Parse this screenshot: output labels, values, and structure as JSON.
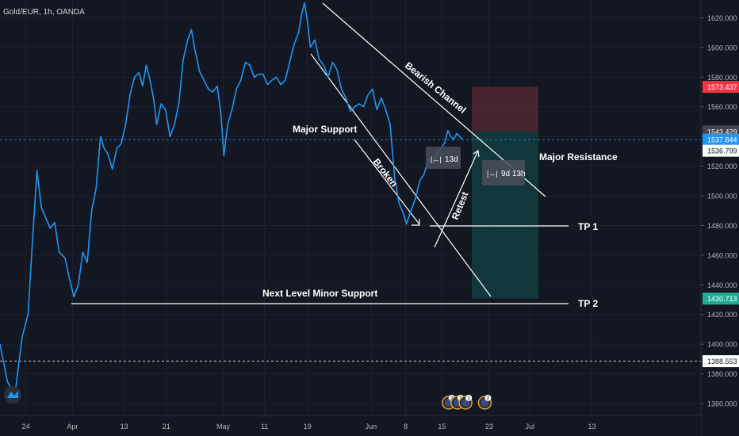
{
  "symbol_label": "Gold/EUR, 1h, OANDA",
  "colors": {
    "background": "#131722",
    "price_line": "#2196f3",
    "grid": "#1e2230",
    "axis_text": "#b2b5be",
    "annotation": "#ffffff",
    "stop_zone": "#5a2a33",
    "target_zone": "#123f43",
    "badge_red": "#f23645",
    "badge_blue": "#2196f3"
  },
  "chart_data": {
    "type": "line",
    "ylim": [
      1352,
      1632
    ],
    "y_ticks": [
      1360,
      1380,
      1400,
      1420,
      1440,
      1460,
      1480,
      1500,
      1520,
      1540,
      1560,
      1580,
      1600,
      1620
    ],
    "y_tick_labels": [
      "1360.000",
      "1380.000",
      "1400.000",
      "1420.000",
      "1440.000",
      "1460.000",
      "1480.000",
      "1500.000",
      "1520.000",
      "1540.000",
      "1560.000",
      "1580.000",
      "1600.000",
      "1620.000"
    ],
    "x_ticks": [
      {
        "label": "24",
        "t": 0.035
      },
      {
        "label": "Apr",
        "t": 0.098
      },
      {
        "label": "13",
        "t": 0.168
      },
      {
        "label": "21",
        "t": 0.225
      },
      {
        "label": "May",
        "t": 0.302
      },
      {
        "label": "11",
        "t": 0.358
      },
      {
        "label": "19",
        "t": 0.416
      },
      {
        "label": "Jun",
        "t": 0.502
      },
      {
        "label": "8",
        "t": 0.549
      },
      {
        "label": "15",
        "t": 0.598
      },
      {
        "label": "23",
        "t": 0.662
      },
      {
        "label": "Jul",
        "t": 0.717
      },
      {
        "label": "13",
        "t": 0.801
      }
    ],
    "series": [
      {
        "points": [
          [
            0.0,
            1400
          ],
          [
            0.01,
            1375
          ],
          [
            0.02,
            1365
          ],
          [
            0.03,
            1405
          ],
          [
            0.038,
            1420
          ],
          [
            0.044,
            1470
          ],
          [
            0.05,
            1517
          ],
          [
            0.056,
            1492
          ],
          [
            0.062,
            1485
          ],
          [
            0.068,
            1478
          ],
          [
            0.074,
            1482
          ],
          [
            0.08,
            1462
          ],
          [
            0.088,
            1458
          ],
          [
            0.094,
            1444
          ],
          [
            0.1,
            1432
          ],
          [
            0.106,
            1440
          ],
          [
            0.112,
            1462
          ],
          [
            0.118,
            1455
          ],
          [
            0.124,
            1490
          ],
          [
            0.13,
            1505
          ],
          [
            0.136,
            1540
          ],
          [
            0.141,
            1532
          ],
          [
            0.146,
            1528
          ],
          [
            0.152,
            1518
          ],
          [
            0.158,
            1532
          ],
          [
            0.164,
            1535
          ],
          [
            0.17,
            1548
          ],
          [
            0.176,
            1568
          ],
          [
            0.182,
            1580
          ],
          [
            0.188,
            1583
          ],
          [
            0.193,
            1574
          ],
          [
            0.198,
            1588
          ],
          [
            0.203,
            1578
          ],
          [
            0.208,
            1565
          ],
          [
            0.212,
            1548
          ],
          [
            0.218,
            1562
          ],
          [
            0.224,
            1558
          ],
          [
            0.23,
            1540
          ],
          [
            0.236,
            1548
          ],
          [
            0.242,
            1562
          ],
          [
            0.248,
            1592
          ],
          [
            0.254,
            1605
          ],
          [
            0.259,
            1612
          ],
          [
            0.264,
            1598
          ],
          [
            0.27,
            1584
          ],
          [
            0.276,
            1578
          ],
          [
            0.282,
            1572
          ],
          [
            0.288,
            1570
          ],
          [
            0.294,
            1574
          ],
          [
            0.299,
            1555
          ],
          [
            0.303,
            1527
          ],
          [
            0.308,
            1548
          ],
          [
            0.314,
            1558
          ],
          [
            0.32,
            1572
          ],
          [
            0.326,
            1578
          ],
          [
            0.332,
            1590
          ],
          [
            0.338,
            1588
          ],
          [
            0.344,
            1580
          ],
          [
            0.35,
            1582
          ],
          [
            0.356,
            1582
          ],
          [
            0.362,
            1575
          ],
          [
            0.368,
            1578
          ],
          [
            0.374,
            1580
          ],
          [
            0.38,
            1575
          ],
          [
            0.386,
            1578
          ],
          [
            0.392,
            1590
          ],
          [
            0.398,
            1602
          ],
          [
            0.404,
            1610
          ],
          [
            0.408,
            1622
          ],
          [
            0.412,
            1630
          ],
          [
            0.416,
            1618
          ],
          [
            0.42,
            1600
          ],
          [
            0.426,
            1605
          ],
          [
            0.432,
            1592
          ],
          [
            0.438,
            1588
          ],
          [
            0.444,
            1580
          ],
          [
            0.45,
            1590
          ],
          [
            0.456,
            1585
          ],
          [
            0.462,
            1572
          ],
          [
            0.468,
            1566
          ],
          [
            0.474,
            1557
          ],
          [
            0.48,
            1560
          ],
          [
            0.486,
            1562
          ],
          [
            0.492,
            1560
          ],
          [
            0.498,
            1568
          ],
          [
            0.504,
            1572
          ],
          [
            0.51,
            1558
          ],
          [
            0.516,
            1566
          ],
          [
            0.522,
            1558
          ],
          [
            0.528,
            1548
          ],
          [
            0.534,
            1512
          ],
          [
            0.54,
            1495
          ],
          [
            0.546,
            1488
          ],
          [
            0.55,
            1481
          ],
          [
            0.556,
            1490
          ],
          [
            0.562,
            1498
          ],
          [
            0.568,
            1510
          ],
          [
            0.574,
            1515
          ],
          [
            0.58,
            1525
          ],
          [
            0.586,
            1522
          ],
          [
            0.592,
            1530
          ],
          [
            0.597,
            1532
          ],
          [
            0.602,
            1536
          ],
          [
            0.606,
            1544
          ],
          [
            0.61,
            1540
          ],
          [
            0.614,
            1538
          ],
          [
            0.618,
            1542
          ],
          [
            0.622,
            1540
          ],
          [
            0.626,
            1537.8
          ]
        ]
      }
    ],
    "levels": [
      {
        "label": "1573.437",
        "value": 1573.437,
        "style": "red-badge"
      },
      {
        "label": "1543.429",
        "value": 1543.429,
        "style": "grey-badge"
      },
      {
        "label": "1537.844",
        "value": 1537.844,
        "style": "blue-badge"
      },
      {
        "label": "1536.799",
        "value": 1536.799,
        "style": "white-badge"
      },
      {
        "label": "1430.713",
        "value": 1430.713,
        "style": "teal-badge"
      },
      {
        "label": "1388.553",
        "value": 1388.553,
        "style": "white-badge"
      }
    ],
    "annotations": {
      "bearish_channel": "Bearish Channel",
      "major_support": "Major Support",
      "broken": "Broken",
      "retest": "Retest",
      "major_resistance": "Major Resistance",
      "tp1": "TP 1",
      "tp2": "TP 2",
      "next_level_minor_support": "Next Level Minor Support",
      "range_13d": "13d",
      "range_9d13h": "9d 13h"
    },
    "position_zones": {
      "entry": 1543.429,
      "stop": 1573.437,
      "target": 1430.713
    },
    "event_badges": [
      {
        "label": "2",
        "t": 0.607
      },
      {
        "label": "3",
        "t": 0.619
      },
      {
        "label": "1",
        "t": 0.63
      },
      {
        "label": "2",
        "t": 0.656
      }
    ]
  }
}
